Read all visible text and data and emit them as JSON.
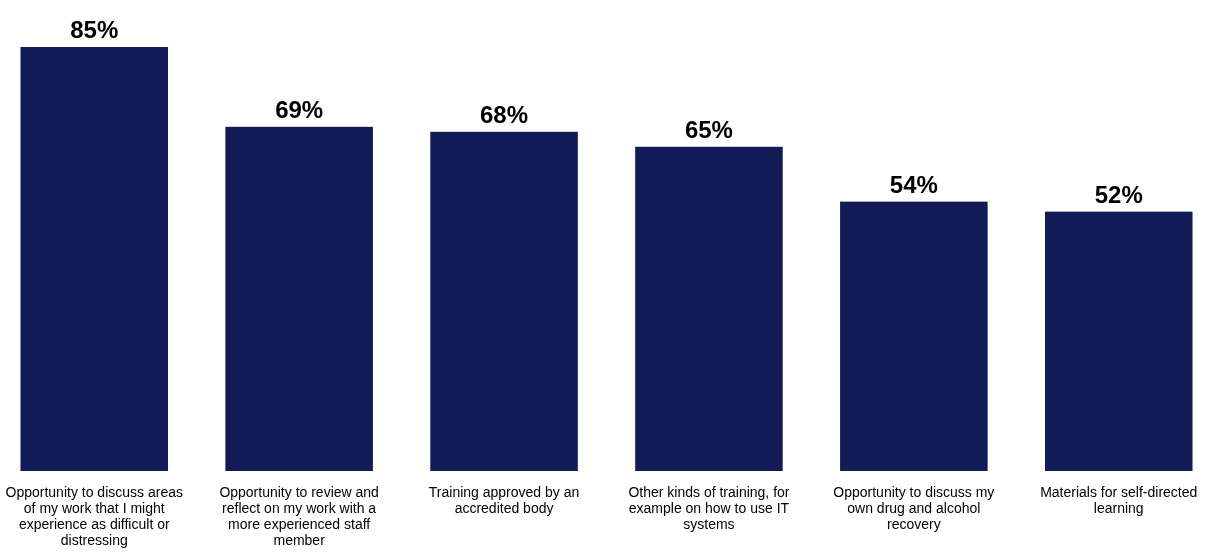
{
  "chart_data": {
    "type": "bar",
    "categories": [
      "Opportunity to discuss areas of my work that I might experience as difficult or distressing",
      "Opportunity to review and reflect on my work with a more experienced staff member",
      "Training approved by an accredited body",
      "Other kinds of training, for example on how to use IT systems",
      "Opportunity to discuss my own drug and alcohol recovery",
      "Materials for self-directed learning"
    ],
    "values": [
      85,
      69,
      68,
      65,
      54,
      52
    ],
    "value_labels": [
      "85%",
      "69%",
      "68%",
      "65%",
      "54%",
      "52%"
    ],
    "color": "#131b57"
  }
}
